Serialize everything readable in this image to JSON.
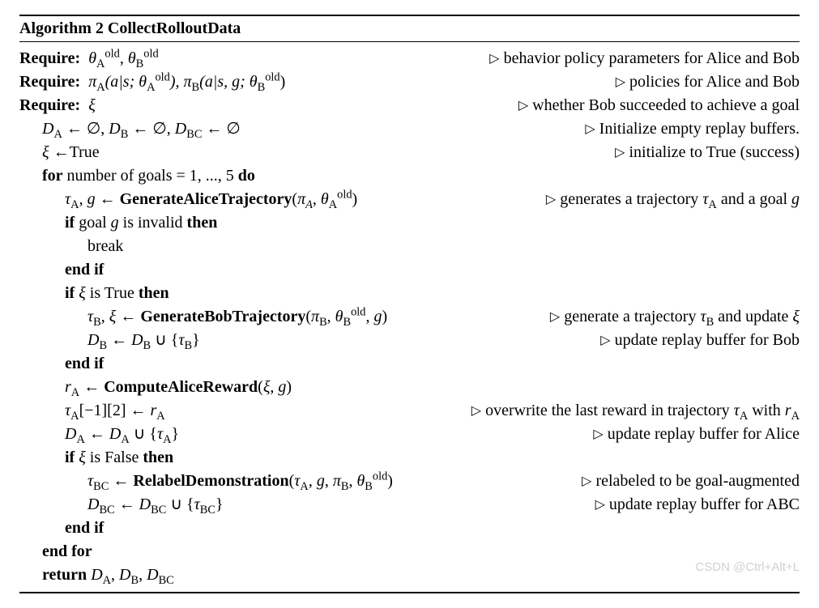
{
  "title_prefix": "Algorithm 2",
  "title_name": "CollectRolloutData",
  "kw": {
    "require": "Require:",
    "for": "for",
    "do": "do",
    "if": "if",
    "then": "then",
    "endif": "end if",
    "endfor": "end for",
    "return": "return"
  },
  "sym": {
    "thetaA": "θ",
    "subA": "A",
    "subB": "B",
    "old": "old",
    "piA": "π",
    "piB": "π",
    "xi": "ξ",
    "D": "D",
    "BC": "BC",
    "empty": "∅",
    "tau": "τ",
    "g": "g",
    "rA": "r",
    "arrow": "←",
    "cup": "∪",
    "tri": "▷"
  },
  "req1_comment": "behavior policy parameters for Alice and Bob",
  "req2_args": "(a|s; θ",
  "req2_args2": "), π",
  "req2_args3": "(a|s, g; θ",
  "req2_comment": "policies for Alice and Bob",
  "req3_comment": "whether Bob succeeded to achieve a goal",
  "init_buffers_comment": "Initialize empty replay buffers.",
  "xi_true": "True",
  "xi_true_comment": "initialize to True (success)",
  "for_range": "number of goals = 1, ..., 5",
  "gen_alice": "GenerateAliceTrajectory",
  "gen_alice_comment_pre": "generates a trajectory ",
  "gen_alice_comment_post": " and a goal ",
  "if_goal_invalid": "goal ",
  "if_goal_invalid2": " is invalid",
  "break": "break",
  "if_xi_true": " is True",
  "gen_bob": "GenerateBobTrajectory",
  "gen_bob_comment_pre": "generate a trajectory ",
  "gen_bob_comment_post": " and update ",
  "update_bob_comment": "update replay buffer for Bob",
  "compute_alice": "ComputeAliceReward",
  "overwrite_pre": "overwrite the last reward in trajectory ",
  "overwrite_post": " with ",
  "update_alice_comment": "update replay buffer for Alice",
  "if_xi_false": " is False",
  "relabel": "RelabelDemonstration",
  "relabel_comment": "relabeled to be goal-augmented",
  "update_abc_comment": "update replay buffer for ABC",
  "idx": "[−1][2]",
  "watermark": "CSDN @Ctrl+Alt+L"
}
